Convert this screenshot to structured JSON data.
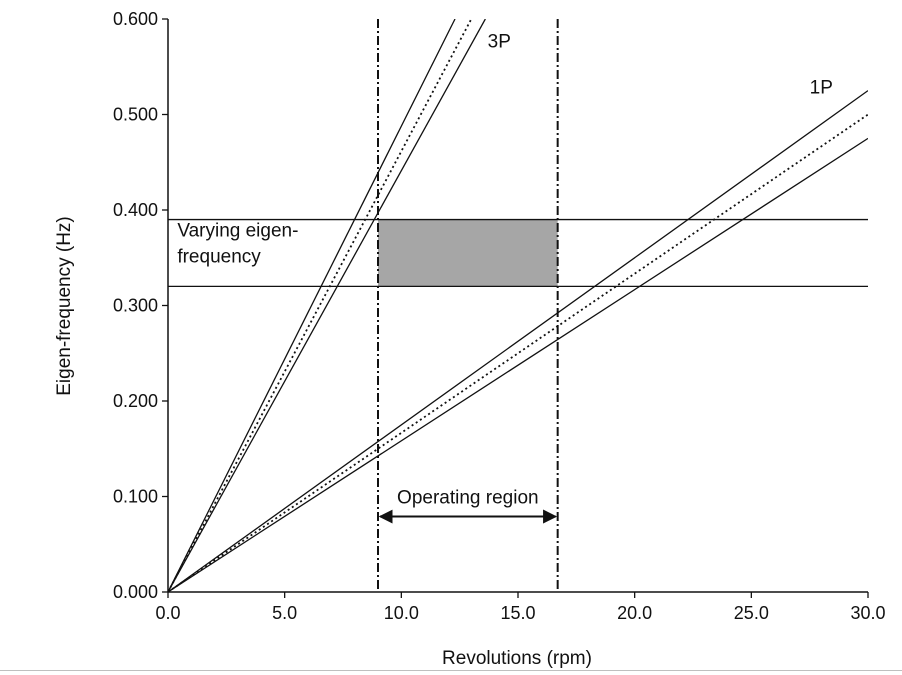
{
  "chart_data": {
    "type": "line",
    "title": "",
    "xlabel": "Revolutions (rpm)",
    "ylabel": "Eigen-frequency (Hz)",
    "xlim": [
      0,
      30
    ],
    "ylim": [
      0,
      0.6
    ],
    "x_ticks": [
      "0.0",
      "5.0",
      "10.0",
      "15.0",
      "20.0",
      "25.0",
      "30.0"
    ],
    "y_ticks": [
      "0.000",
      "0.100",
      "0.200",
      "0.300",
      "0.400",
      "0.500",
      "0.600"
    ],
    "grid": false,
    "series": [
      {
        "name": "3P",
        "style": "solid",
        "x": [
          0,
          12.3
        ],
        "y": [
          0,
          0.6
        ]
      },
      {
        "name": "3P",
        "style": "dotted",
        "x": [
          0,
          13.0
        ],
        "y": [
          0,
          0.6
        ]
      },
      {
        "name": "3P",
        "style": "solid",
        "x": [
          0,
          13.6
        ],
        "y": [
          0,
          0.6
        ]
      },
      {
        "name": "1P",
        "style": "solid",
        "x": [
          0,
          30
        ],
        "y": [
          0,
          0.525
        ]
      },
      {
        "name": "1P",
        "style": "dotted",
        "x": [
          0,
          30
        ],
        "y": [
          0,
          0.5
        ]
      },
      {
        "name": "1P",
        "style": "solid",
        "x": [
          0,
          30
        ],
        "y": [
          0,
          0.475
        ]
      }
    ],
    "horizontal_lines": [
      0.39,
      0.32
    ],
    "vertical_lines": [
      9.0,
      16.7
    ],
    "shaded_region": {
      "x": [
        9.0,
        16.7
      ],
      "y": [
        0.32,
        0.39
      ],
      "color": "#a6a6a6"
    },
    "annotations": {
      "line_3p": {
        "text": "3P",
        "x": 13.7,
        "y": 0.57
      },
      "line_1p": {
        "text": "1P",
        "x": 27.5,
        "y": 0.522
      },
      "band_line1": {
        "text": "Varying eigen-",
        "x": 0.4,
        "y": 0.372
      },
      "band_line2": {
        "text": "frequency",
        "x": 0.4,
        "y": 0.345
      },
      "operating_region": {
        "text": "Operating region",
        "x": 12.85,
        "y": 0.1,
        "arrow_y": 0.079
      }
    }
  }
}
